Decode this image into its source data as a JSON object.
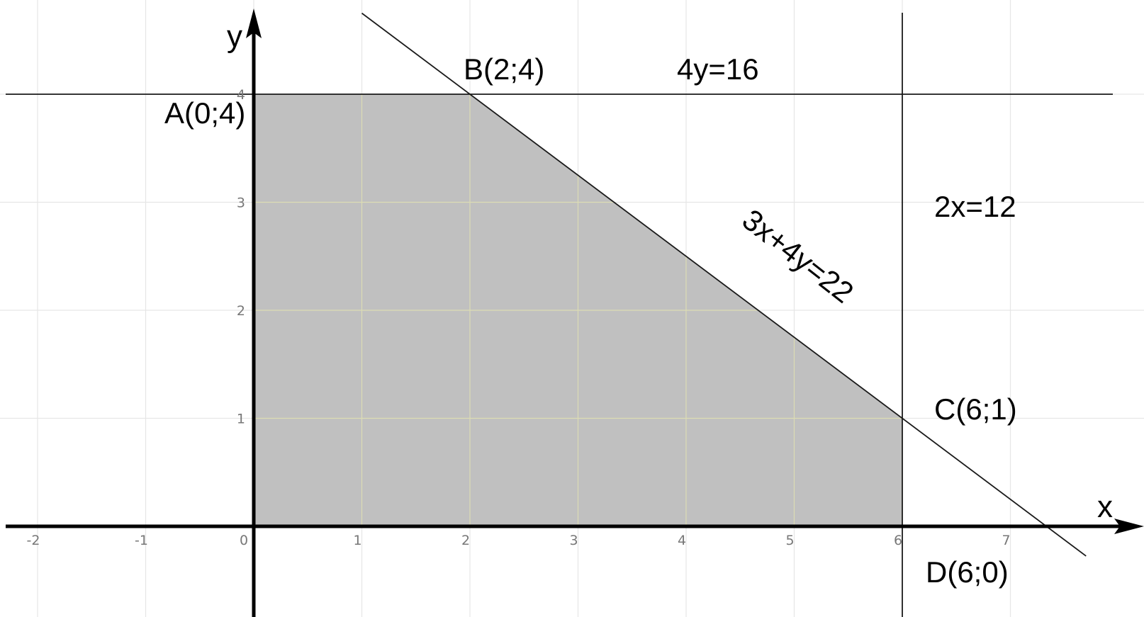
{
  "chart_data": {
    "type": "feasible-region",
    "xlim": [
      -2.3,
      7.7
    ],
    "ylim": [
      -0.6,
      4.8
    ],
    "grid": true,
    "x_ticks": [
      -2,
      -1,
      0,
      1,
      2,
      3,
      4,
      5,
      6,
      7
    ],
    "y_ticks": [
      1,
      2,
      3,
      4
    ],
    "xlabel": "x",
    "ylabel": "y",
    "region": {
      "vertices": [
        [
          0,
          0
        ],
        [
          0,
          4
        ],
        [
          2,
          4
        ],
        [
          6,
          1
        ],
        [
          6,
          0
        ]
      ],
      "fill": "#c0c0c0"
    },
    "constraint_lines": [
      {
        "name": "3x+4y=22",
        "kind": "line",
        "a": 3,
        "b": 4,
        "c": 22
      },
      {
        "name": "4y=16",
        "kind": "horizontal",
        "y": 4
      },
      {
        "name": "2x=12",
        "kind": "vertical",
        "x": 6
      }
    ],
    "points": [
      {
        "label": "A(0;4)",
        "x": 0,
        "y": 4
      },
      {
        "label": "B(2;4)",
        "x": 2,
        "y": 4
      },
      {
        "label": "C(6;1)",
        "x": 6,
        "y": 1
      },
      {
        "label": "D(6;0)",
        "x": 6,
        "y": 0
      }
    ]
  },
  "colors": {
    "region": "#c0c0c0",
    "axis": "#000000",
    "grid": "#e6e6e6",
    "line": "#1a1a1a"
  }
}
